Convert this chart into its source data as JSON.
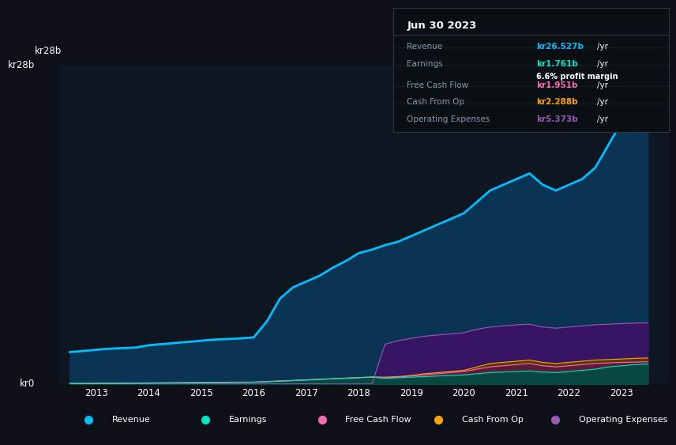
{
  "bg_color": "#0d1117",
  "plot_bg_color": "#0e1621",
  "grid_color": "#1e2d3d",
  "title_date": "Jun 30 2023",
  "info_box": {
    "Revenue": {
      "value": "kr26.527b",
      "color": "#00bfff"
    },
    "Earnings": {
      "value": "kr1.761b",
      "color": "#00e5cc"
    },
    "profit_margin": "6.6%",
    "Free Cash Flow": {
      "value": "kr1.951b",
      "color": "#ff69b4"
    },
    "Cash From Op": {
      "value": "kr2.288b",
      "color": "#ffa500"
    },
    "Operating Expenses": {
      "value": "kr5.373b",
      "color": "#9b59b6"
    }
  },
  "ylabel_top": "kr28b",
  "ylabel_bottom": "kr0",
  "years": [
    2012.5,
    2013.0,
    2013.25,
    2013.5,
    2013.75,
    2014.0,
    2014.25,
    2014.5,
    2014.75,
    2015.0,
    2015.25,
    2015.5,
    2015.75,
    2016.0,
    2016.25,
    2016.5,
    2016.75,
    2017.0,
    2017.25,
    2017.5,
    2017.75,
    2018.0,
    2018.25,
    2018.5,
    2018.75,
    2019.0,
    2019.25,
    2019.5,
    2019.75,
    2020.0,
    2020.25,
    2020.5,
    2020.75,
    2021.0,
    2021.25,
    2021.5,
    2021.75,
    2022.0,
    2022.25,
    2022.5,
    2022.75,
    2023.0,
    2023.25,
    2023.5
  ],
  "revenue": [
    2.8,
    3.0,
    3.1,
    3.15,
    3.2,
    3.4,
    3.5,
    3.6,
    3.7,
    3.8,
    3.9,
    3.95,
    4.0,
    4.1,
    5.5,
    7.5,
    8.5,
    9.0,
    9.5,
    10.2,
    10.8,
    11.5,
    11.8,
    12.2,
    12.5,
    13.0,
    13.5,
    14.0,
    14.5,
    15.0,
    16.0,
    17.0,
    17.5,
    18.0,
    18.5,
    17.5,
    17.0,
    17.5,
    18.0,
    19.0,
    21.0,
    23.0,
    25.0,
    26.527
  ],
  "earnings": [
    0.05,
    0.06,
    0.07,
    0.08,
    0.09,
    0.1,
    0.1,
    0.11,
    0.11,
    0.12,
    0.13,
    0.14,
    0.15,
    0.16,
    0.2,
    0.25,
    0.3,
    0.35,
    0.4,
    0.45,
    0.5,
    0.55,
    0.6,
    0.5,
    0.55,
    0.6,
    0.65,
    0.7,
    0.75,
    0.8,
    0.9,
    1.0,
    1.05,
    1.1,
    1.15,
    1.05,
    1.0,
    1.1,
    1.2,
    1.3,
    1.5,
    1.6,
    1.7,
    1.761
  ],
  "free_cash_flow": [
    0.02,
    0.03,
    0.04,
    0.05,
    0.06,
    0.07,
    0.08,
    0.09,
    0.1,
    0.1,
    0.12,
    0.13,
    0.14,
    0.15,
    0.2,
    0.25,
    0.3,
    0.35,
    0.4,
    0.45,
    0.5,
    0.55,
    0.6,
    0.55,
    0.6,
    0.7,
    0.8,
    0.9,
    1.0,
    1.1,
    1.3,
    1.5,
    1.6,
    1.7,
    1.8,
    1.6,
    1.5,
    1.6,
    1.7,
    1.8,
    1.85,
    1.9,
    1.92,
    1.951
  ],
  "cash_from_op": [
    0.04,
    0.05,
    0.06,
    0.07,
    0.08,
    0.09,
    0.1,
    0.11,
    0.12,
    0.13,
    0.14,
    0.15,
    0.16,
    0.17,
    0.22,
    0.27,
    0.32,
    0.37,
    0.42,
    0.47,
    0.52,
    0.57,
    0.62,
    0.6,
    0.65,
    0.75,
    0.9,
    1.0,
    1.1,
    1.2,
    1.5,
    1.8,
    1.9,
    2.0,
    2.1,
    1.9,
    1.8,
    1.9,
    2.0,
    2.1,
    2.15,
    2.2,
    2.25,
    2.288
  ],
  "operating_expenses": [
    0.0,
    0.0,
    0.0,
    0.0,
    0.0,
    0.0,
    0.0,
    0.0,
    0.0,
    0.0,
    0.0,
    0.0,
    0.0,
    0.0,
    0.0,
    0.0,
    0.0,
    0.0,
    0.0,
    0.0,
    0.0,
    0.0,
    0.0,
    3.5,
    3.8,
    4.0,
    4.2,
    4.3,
    4.4,
    4.5,
    4.8,
    5.0,
    5.1,
    5.2,
    5.25,
    5.0,
    4.9,
    5.0,
    5.1,
    5.2,
    5.25,
    5.3,
    5.35,
    5.373
  ],
  "revenue_color": "#00bfff",
  "revenue_fill": "#0a3a5c",
  "earnings_color": "#00e5cc",
  "earnings_fill": "#004d44",
  "fcf_color": "#ff69b4",
  "fcf_fill": "#5c1a3a",
  "cash_op_color": "#ffa500",
  "cash_op_fill": "#5c3a00",
  "op_exp_color": "#9b59b6",
  "op_exp_fill": "#3d1166",
  "legend_items": [
    {
      "label": "Revenue",
      "color": "#00bfff"
    },
    {
      "label": "Earnings",
      "color": "#00e5cc"
    },
    {
      "label": "Free Cash Flow",
      "color": "#ff69b4"
    },
    {
      "label": "Cash From Op",
      "color": "#ffa500"
    },
    {
      "label": "Operating Expenses",
      "color": "#9b59b6"
    }
  ],
  "xlim": [
    2012.3,
    2023.9
  ],
  "ylim": [
    0,
    28
  ],
  "xticks": [
    2013,
    2014,
    2015,
    2016,
    2017,
    2018,
    2019,
    2020,
    2021,
    2022,
    2023
  ],
  "ytick_labels": [
    "kr0",
    "kr28b"
  ],
  "ytick_positions": [
    0,
    28
  ]
}
